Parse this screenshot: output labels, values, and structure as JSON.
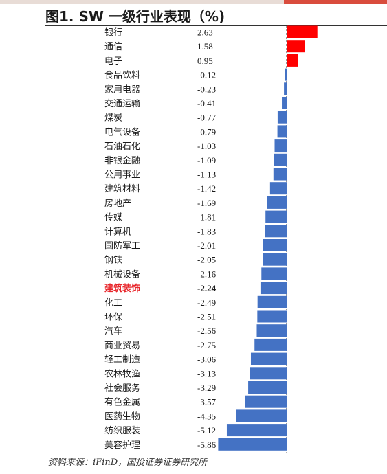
{
  "title": "图1. SW 一级行业表现（%)",
  "source": "资料来源：iFinD，国投证券证券研究所",
  "colors": {
    "positive": "#ff0000",
    "negative": "#4472c4",
    "highlight_label": "#e8262b",
    "text": "#1a1a1a"
  },
  "chart_data": {
    "type": "bar",
    "orientation": "horizontal",
    "categories": [
      "银行",
      "通信",
      "电子",
      "食品饮料",
      "家用电器",
      "交通运输",
      "煤炭",
      "电气设备",
      "石油石化",
      "非银金融",
      "公用事业",
      "建筑材料",
      "房地产",
      "传媒",
      "计算机",
      "国防军工",
      "钢铁",
      "机械设备",
      "建筑装饰",
      "化工",
      "环保",
      "汽车",
      "商业贸易",
      "轻工制造",
      "农林牧渔",
      "社会服务",
      "有色金属",
      "医药生物",
      "纺织服装",
      "美容护理"
    ],
    "values": [
      2.63,
      1.58,
      0.95,
      -0.12,
      -0.23,
      -0.41,
      -0.77,
      -0.79,
      -1.03,
      -1.09,
      -1.13,
      -1.42,
      -1.69,
      -1.81,
      -1.83,
      -2.01,
      -2.05,
      -2.16,
      -2.24,
      -2.49,
      -2.51,
      -2.56,
      -2.75,
      -3.06,
      -3.13,
      -3.29,
      -3.57,
      -4.35,
      -5.12,
      -5.86
    ],
    "value_labels": [
      "2.63",
      "1.58",
      "0.95",
      "-0.12",
      "-0.23",
      "-0.41",
      "-0.77",
      "-0.79",
      "-1.03",
      "-1.09",
      "-1.13",
      "-1.42",
      "-1.69",
      "-1.81",
      "-1.83",
      "-2.01",
      "-2.05",
      "-2.16",
      "-2.24",
      "-2.49",
      "-2.51",
      "-2.56",
      "-2.75",
      "-3.06",
      "-3.13",
      "-3.29",
      "-3.57",
      "-4.35",
      "-5.12",
      "-5.86"
    ],
    "highlight_category": "建筑装饰",
    "xlim": [
      -5.86,
      2.63
    ],
    "grid": false,
    "legend": "none"
  }
}
